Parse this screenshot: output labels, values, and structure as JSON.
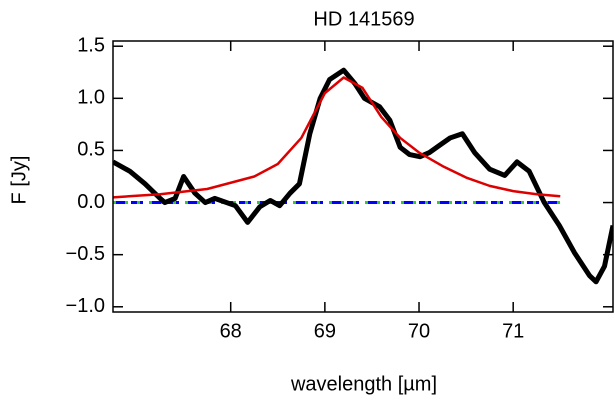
{
  "chart_data": {
    "type": "line",
    "title": "HD 141569",
    "x_label": "wavelength [µm]",
    "y_label": "F [Jy]",
    "xlim": [
      66.75,
      72.06
    ],
    "ylim": [
      -1.05,
      1.55
    ],
    "xticks": [
      68,
      69,
      70,
      71
    ],
    "yticks": [
      {
        "value": 1.5,
        "label": "1.5"
      },
      {
        "value": 1.0,
        "label": "1.0"
      },
      {
        "value": 0.5,
        "label": "0.5"
      },
      {
        "value": 0.0,
        "label": "0.0"
      },
      {
        "value": -0.5,
        "label": "−0.5"
      },
      {
        "value": -1.0,
        "label": "−1.0"
      }
    ],
    "series": [
      {
        "color": "#0000ff",
        "dash": "12,6",
        "width": 3,
        "x": [
          66.75,
          71.5
        ],
        "values": [
          0,
          0
        ]
      },
      {
        "color": "#33cc33",
        "dash": "3,9",
        "width": 3,
        "x": [
          66.75,
          71.5
        ],
        "values": [
          0,
          0
        ]
      },
      {
        "color": "#000000",
        "width": 5,
        "x": [
          66.75,
          66.93,
          67.09,
          67.25,
          67.3,
          67.41,
          67.5,
          67.62,
          67.73,
          67.83,
          68.05,
          68.18,
          68.31,
          68.42,
          68.52,
          68.63,
          68.73,
          68.84,
          68.95,
          69.05,
          69.2,
          69.32,
          69.42,
          69.58,
          69.69,
          69.8,
          69.9,
          70.01,
          70.11,
          70.22,
          70.33,
          70.46,
          70.59,
          70.75,
          70.91,
          71.04,
          71.17,
          71.33,
          71.49,
          71.65,
          71.81,
          71.88,
          71.97,
          72.06
        ],
        "values": [
          0.39,
          0.3,
          0.18,
          0.04,
          0.0,
          0.04,
          0.25,
          0.09,
          0.0,
          0.04,
          -0.03,
          -0.19,
          -0.04,
          0.02,
          -0.03,
          0.09,
          0.18,
          0.66,
          1.0,
          1.18,
          1.27,
          1.14,
          1.0,
          0.92,
          0.79,
          0.53,
          0.46,
          0.44,
          0.48,
          0.55,
          0.62,
          0.66,
          0.48,
          0.32,
          0.26,
          0.39,
          0.3,
          0.0,
          -0.22,
          -0.48,
          -0.7,
          -0.76,
          -0.61,
          -0.22
        ]
      },
      {
        "color": "#dd0000",
        "width": 2.5,
        "x": [
          66.75,
          67.25,
          67.75,
          68.25,
          68.5,
          68.75,
          69.0,
          69.2,
          69.4,
          69.6,
          69.8,
          70.0,
          70.25,
          70.5,
          70.75,
          71.0,
          71.25,
          71.5
        ],
        "values": [
          0.05,
          0.08,
          0.13,
          0.25,
          0.37,
          0.62,
          1.05,
          1.2,
          1.1,
          0.82,
          0.62,
          0.48,
          0.35,
          0.24,
          0.16,
          0.11,
          0.08,
          0.06
        ]
      }
    ]
  }
}
